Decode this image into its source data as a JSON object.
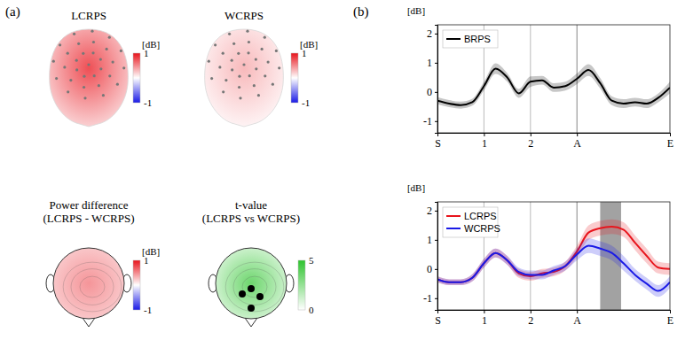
{
  "panel_labels": [
    "(a)",
    "(b)"
  ],
  "chart_data": [
    {
      "type": "topomap",
      "title": "LCRPS",
      "center_value": 0.75,
      "edge_value": 0.2,
      "colorbar": {
        "label": "[dB]",
        "range": [
          -1,
          1
        ],
        "ticks": [
          -1,
          1
        ],
        "colors": [
          "#1a1ae6",
          "#ffffff",
          "#e8141c"
        ]
      }
    },
    {
      "type": "topomap",
      "title": "WCRPS",
      "center_value": 0.3,
      "edge_value": 0.05,
      "colorbar": {
        "label": "[dB]",
        "range": [
          -1,
          1
        ],
        "ticks": [
          -1,
          1
        ],
        "colors": [
          "#1a1ae6",
          "#ffffff",
          "#e8141c"
        ]
      }
    },
    {
      "type": "topomap",
      "title": "Power difference",
      "subtitle": "(LCRPS - WCRPS)",
      "center_value": 0.45,
      "edge_value": 0.2,
      "colorbar": {
        "label": "[dB]",
        "range": [
          -1,
          1
        ],
        "ticks": [
          -1,
          1
        ],
        "colors": [
          "#1a1ae6",
          "#ffffff",
          "#e8141c"
        ]
      }
    },
    {
      "type": "topomap",
      "title": "t-value",
      "subtitle": "(LCRPS vs WCRPS)",
      "center_value": 3.5,
      "edge_value": 0.8,
      "colorbar": {
        "range": [
          0,
          5
        ],
        "ticks": [
          0,
          5
        ],
        "colors": [
          "#ffffff",
          "#2ec42e"
        ]
      }
    },
    {
      "type": "line",
      "y_label": "[dB]",
      "grid": true,
      "legend": "upper left",
      "x": [
        0,
        0.25,
        0.5,
        0.75,
        1,
        1.25,
        1.5,
        1.75,
        2,
        2.25,
        2.5,
        2.75,
        3,
        3.25,
        3.5,
        3.75,
        4,
        4.25,
        4.5,
        4.75,
        5
      ],
      "xlim": [
        0,
        5
      ],
      "xticks": [
        {
          "value": 0,
          "label": "S"
        },
        1,
        2,
        {
          "value": 3,
          "label": "A"
        },
        {
          "value": 5,
          "label": "E"
        }
      ],
      "ylim": [
        -1.4,
        2.3
      ],
      "yticks": [
        -1,
        0,
        1,
        2
      ],
      "series": [
        {
          "name": "BRPS",
          "color": "#000000",
          "values": [
            -0.3,
            -0.4,
            -0.45,
            -0.35,
            0.2,
            0.8,
            0.5,
            -0.05,
            0.35,
            0.4,
            0.15,
            0.2,
            0.45,
            0.75,
            0.3,
            -0.3,
            -0.4,
            -0.35,
            -0.4,
            -0.2,
            0.15
          ],
          "errors": [
            0.12,
            0.12,
            0.12,
            0.12,
            0.15,
            0.18,
            0.15,
            0.15,
            0.18,
            0.15,
            0.15,
            0.15,
            0.18,
            0.2,
            0.18,
            0.15,
            0.15,
            0.15,
            0.15,
            0.15,
            0.2
          ]
        }
      ]
    },
    {
      "type": "line",
      "y_label": "[dB]",
      "grid": true,
      "legend": "upper left",
      "x": [
        0,
        0.25,
        0.5,
        0.75,
        1,
        1.25,
        1.5,
        1.75,
        2,
        2.25,
        2.5,
        2.75,
        3,
        3.25,
        3.5,
        3.75,
        4,
        4.25,
        4.5,
        4.75,
        5
      ],
      "xlim": [
        0,
        5
      ],
      "xticks": [
        {
          "value": 0,
          "label": "S"
        },
        1,
        2,
        {
          "value": 3,
          "label": "A"
        },
        {
          "value": 5,
          "label": "E"
        }
      ],
      "ylim": [
        -1.4,
        2.3
      ],
      "yticks": [
        -1,
        0,
        1,
        2
      ],
      "significance_band": [
        3.5,
        3.95
      ],
      "series": [
        {
          "name": "LCRPS",
          "color": "#e8141c",
          "values": [
            -0.35,
            -0.45,
            -0.45,
            -0.3,
            0.2,
            0.55,
            0.3,
            -0.15,
            -0.25,
            -0.15,
            -0.1,
            0.1,
            0.6,
            1.25,
            1.4,
            1.45,
            1.35,
            0.9,
            0.45,
            0.05,
            0.0
          ],
          "errors": [
            0.1,
            0.1,
            0.1,
            0.12,
            0.15,
            0.15,
            0.15,
            0.15,
            0.15,
            0.15,
            0.15,
            0.15,
            0.2,
            0.25,
            0.25,
            0.25,
            0.25,
            0.25,
            0.25,
            0.2,
            0.2
          ]
        },
        {
          "name": "WCRPS",
          "color": "#1a1ae6",
          "values": [
            -0.35,
            -0.45,
            -0.45,
            -0.3,
            0.2,
            0.55,
            0.3,
            -0.1,
            -0.2,
            -0.2,
            -0.05,
            0.1,
            0.5,
            0.8,
            0.7,
            0.55,
            0.2,
            -0.2,
            -0.5,
            -0.75,
            -0.45
          ],
          "errors": [
            0.1,
            0.1,
            0.1,
            0.12,
            0.15,
            0.15,
            0.15,
            0.15,
            0.15,
            0.15,
            0.15,
            0.15,
            0.2,
            0.25,
            0.25,
            0.25,
            0.25,
            0.2,
            0.2,
            0.2,
            0.2
          ]
        }
      ]
    }
  ]
}
